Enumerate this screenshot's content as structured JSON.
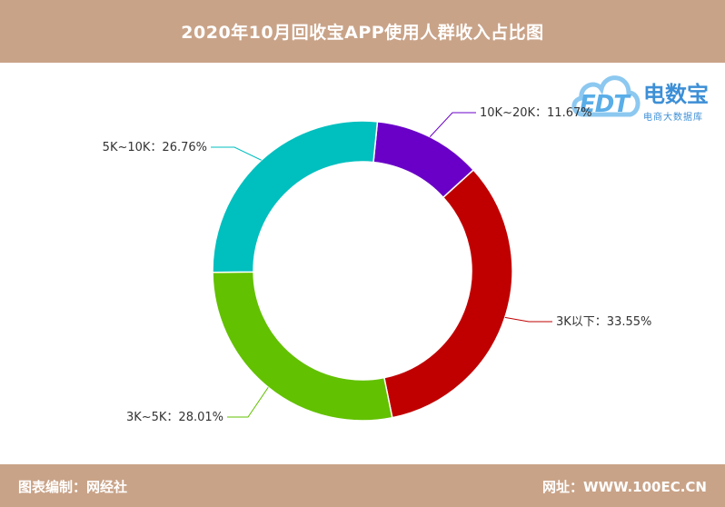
{
  "header": {
    "title": "2020年10月回收宝APP使用人群收入占比图"
  },
  "footer": {
    "left": "图表编制：网经社",
    "right": "网址：WWW.100EC.CN"
  },
  "logo": {
    "brand": "电数宝",
    "abbr": "EDT",
    "sub": "电商大数据库"
  },
  "colors": {
    "header_bg": "#c9a388",
    "segments": [
      "#6a00c8",
      "#c00000",
      "#62c100",
      "#00bfbf"
    ]
  },
  "chart_data": {
    "type": "pie",
    "variant": "donut",
    "title": "2020年10月回收宝APP使用人群收入占比图",
    "slices": [
      {
        "label": "10K~20K",
        "value": 11.67,
        "text": "10K~20K：11.67%"
      },
      {
        "label": "3K以下",
        "value": 33.55,
        "text": "3K以下：33.55%"
      },
      {
        "label": "3K~5K",
        "value": 28.01,
        "text": "3K~5K：28.01%"
      },
      {
        "label": "5K~10K",
        "value": 26.76,
        "text": "5K~10K：26.76%"
      }
    ]
  }
}
